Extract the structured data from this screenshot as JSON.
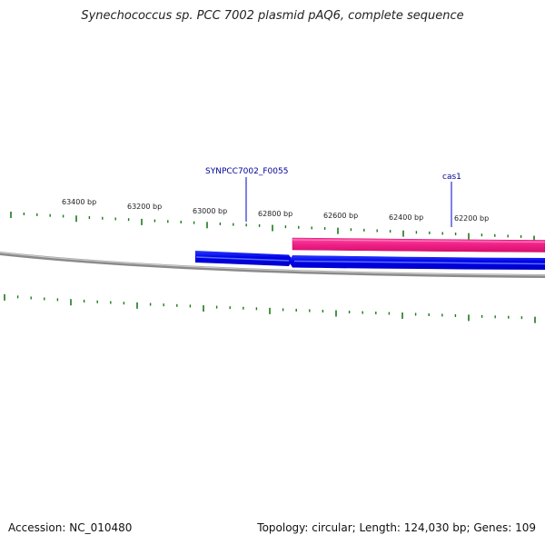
{
  "title": "Synechococcus sp. PCC 7002 plasmid pAQ6, complete sequence",
  "genome_map": {
    "scale_labels": [
      "63400 bp",
      "63200 bp",
      "63000 bp",
      "62800 bp",
      "62600 bp",
      "62400 bp",
      "62200 bp"
    ],
    "gene_labels": [
      "SYNPCC7002_F0055",
      "cas1"
    ],
    "colors": {
      "forward_gene": "#0000ee",
      "reverse_gene": "#ee1f86",
      "backbone": "#777777",
      "ticks": "#1a7a1a",
      "label_text": "#000099",
      "label_line": "#0000cc"
    }
  },
  "footer": {
    "accession": "Accession: NC_010480",
    "summary": "Topology: circular; Length: 124,030 bp; Genes: 109"
  }
}
